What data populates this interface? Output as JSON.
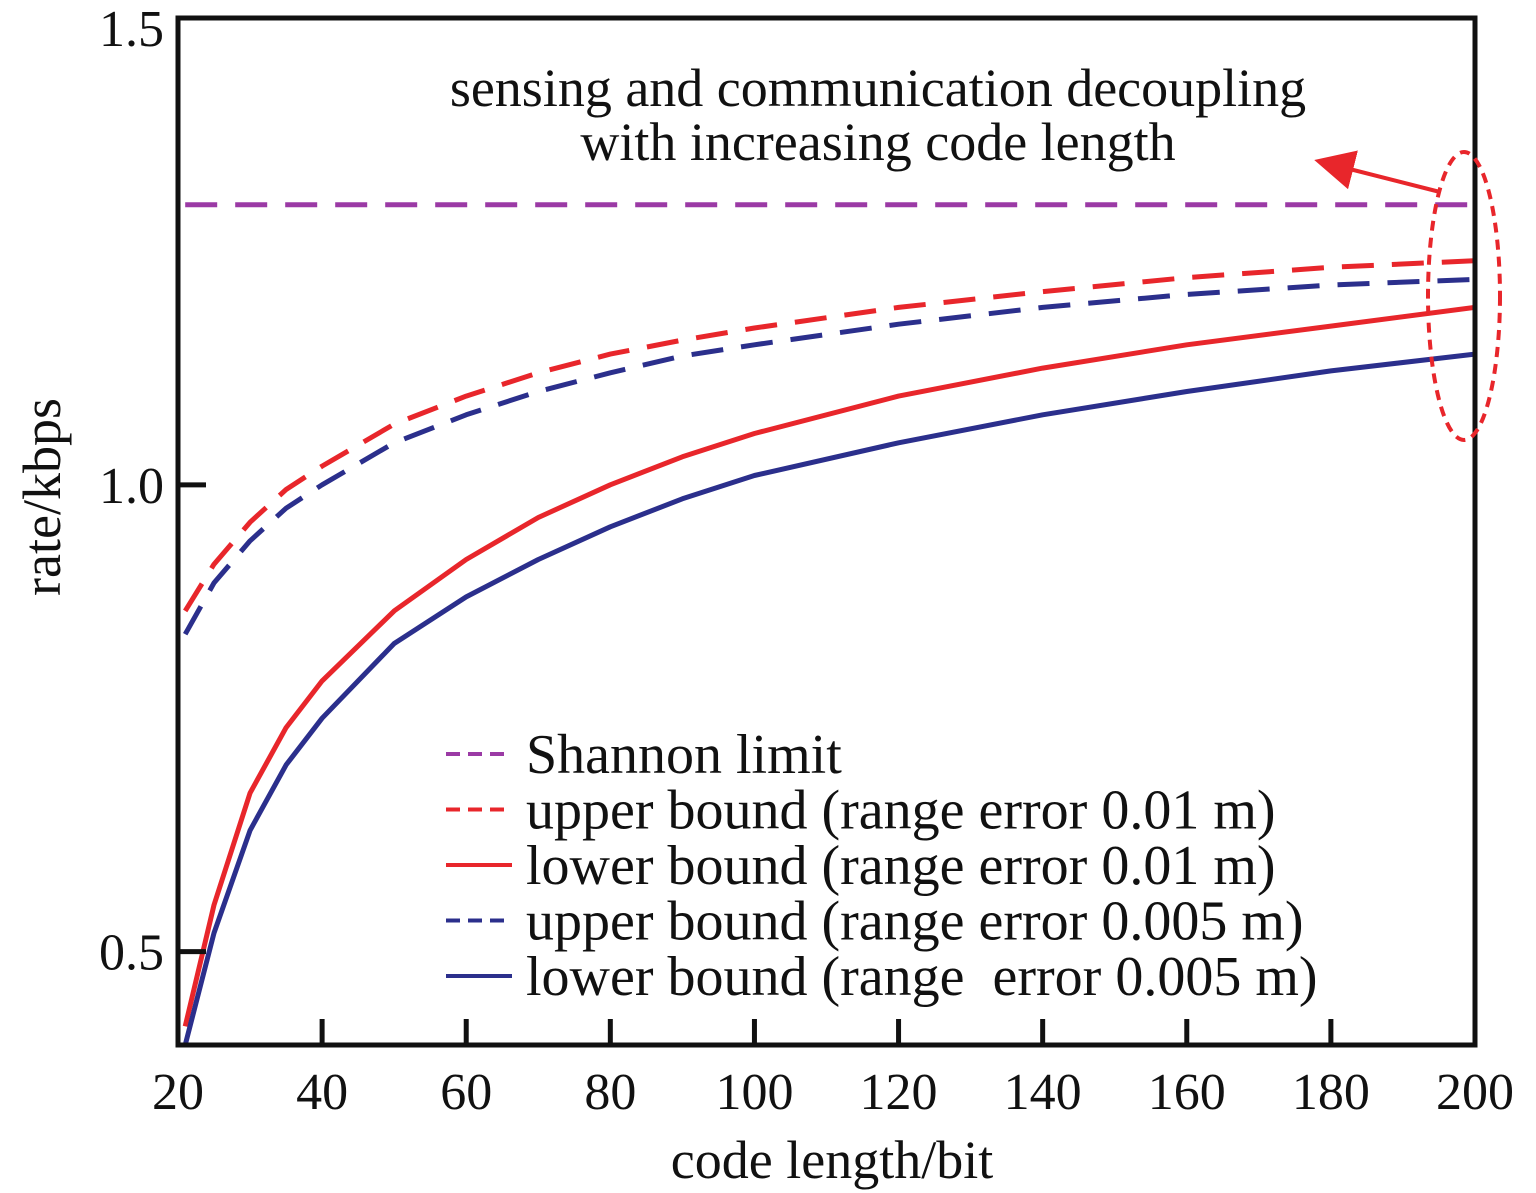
{
  "chart_data": {
    "type": "line",
    "title": "",
    "xlabel": "code length/bit",
    "ylabel": "rate/kbps",
    "xlim": [
      20,
      200
    ],
    "ylim": [
      0.4,
      1.5
    ],
    "xticks": [
      20,
      40,
      60,
      80,
      100,
      120,
      140,
      160,
      180,
      200
    ],
    "xtick_labels": [
      "20",
      "40",
      "60",
      "80",
      "100",
      "120",
      "140",
      "160",
      "180",
      "200"
    ],
    "yticks": [
      0.5,
      1.0,
      1.5
    ],
    "ytick_labels": [
      "0.5",
      "1.0",
      "1.5"
    ],
    "grid": false,
    "legend_position": "bottom-right",
    "x": [
      21,
      25,
      30,
      35,
      40,
      50,
      60,
      70,
      80,
      90,
      100,
      120,
      140,
      160,
      180,
      200
    ],
    "series": [
      {
        "name": "Shannon limit",
        "color": "#9b3aa5",
        "style": "dashed",
        "values": [
          1.3,
          1.3,
          1.3,
          1.3,
          1.3,
          1.3,
          1.3,
          1.3,
          1.3,
          1.3,
          1.3,
          1.3,
          1.3,
          1.3,
          1.3,
          1.3
        ]
      },
      {
        "name": "upper bound (range error 0.01 m)",
        "color": "#e8262b",
        "style": "dashed",
        "values": [
          0.865,
          0.915,
          0.96,
          0.995,
          1.02,
          1.065,
          1.095,
          1.12,
          1.14,
          1.155,
          1.168,
          1.19,
          1.207,
          1.222,
          1.233,
          1.24
        ]
      },
      {
        "name": "lower bound (range error 0.01 m)",
        "color": "#e8262b",
        "style": "solid",
        "values": [
          0.42,
          0.55,
          0.67,
          0.74,
          0.79,
          0.865,
          0.92,
          0.965,
          1.0,
          1.03,
          1.055,
          1.095,
          1.125,
          1.15,
          1.17,
          1.19
        ]
      },
      {
        "name": "upper bound (range error 0.005 m)",
        "color": "#2b2f8c",
        "style": "dashed",
        "values": [
          0.84,
          0.895,
          0.94,
          0.975,
          1.0,
          1.045,
          1.075,
          1.1,
          1.12,
          1.138,
          1.15,
          1.172,
          1.19,
          1.204,
          1.214,
          1.22
        ]
      },
      {
        "name": "lower bound (range  error 0.005 m)",
        "color": "#2b2f8c",
        "style": "solid",
        "values": [
          0.4,
          0.52,
          0.63,
          0.7,
          0.75,
          0.83,
          0.88,
          0.92,
          0.955,
          0.985,
          1.01,
          1.045,
          1.075,
          1.1,
          1.122,
          1.14
        ]
      }
    ],
    "annotation": {
      "lines": [
        "sensing and communication decoupling",
        "with increasing code length"
      ],
      "color": "#e8262b"
    }
  }
}
